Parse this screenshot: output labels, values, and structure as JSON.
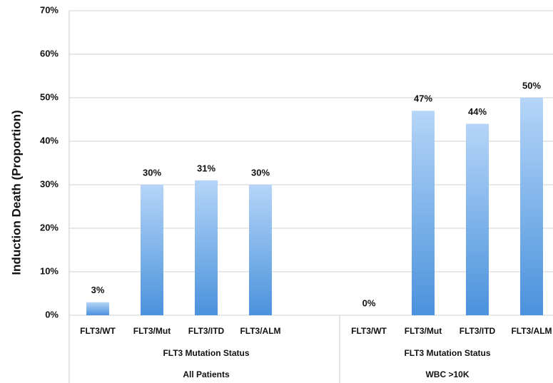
{
  "chart_data": {
    "type": "bar",
    "y_label": "Induction Death (Proportion)",
    "ylim": [
      0,
      70
    ],
    "yticks": [
      {
        "value": 0,
        "label": "0%"
      },
      {
        "value": 10,
        "label": "10%"
      },
      {
        "value": 20,
        "label": "20%"
      },
      {
        "value": 30,
        "label": "30%"
      },
      {
        "value": 40,
        "label": "40%"
      },
      {
        "value": 50,
        "label": "50%"
      },
      {
        "value": 60,
        "label": "60%"
      },
      {
        "value": 70,
        "label": "70%"
      }
    ],
    "grid": true,
    "gradient": [
      "#b5d5f8",
      "#4a92dc"
    ],
    "groups": [
      {
        "title": "All Patients",
        "x_label": "FLT3 Mutation Status",
        "categories": [
          "FLT3/WT",
          "FLT3/Mut",
          "FLT3/ITD",
          "FLT3/ALM"
        ],
        "values": [
          3,
          30,
          31,
          30
        ],
        "value_labels": [
          "3%",
          "30%",
          "31%",
          "30%"
        ]
      },
      {
        "title": "WBC >10K",
        "x_label": "FLT3 Mutation Status",
        "categories": [
          "FLT3/WT",
          "FLT3/Mut",
          "FLT3/ITD",
          "FLT3/ALM"
        ],
        "values": [
          0,
          47,
          44,
          50
        ],
        "value_labels": [
          "0%",
          "47%",
          "44%",
          "50%"
        ]
      }
    ]
  }
}
